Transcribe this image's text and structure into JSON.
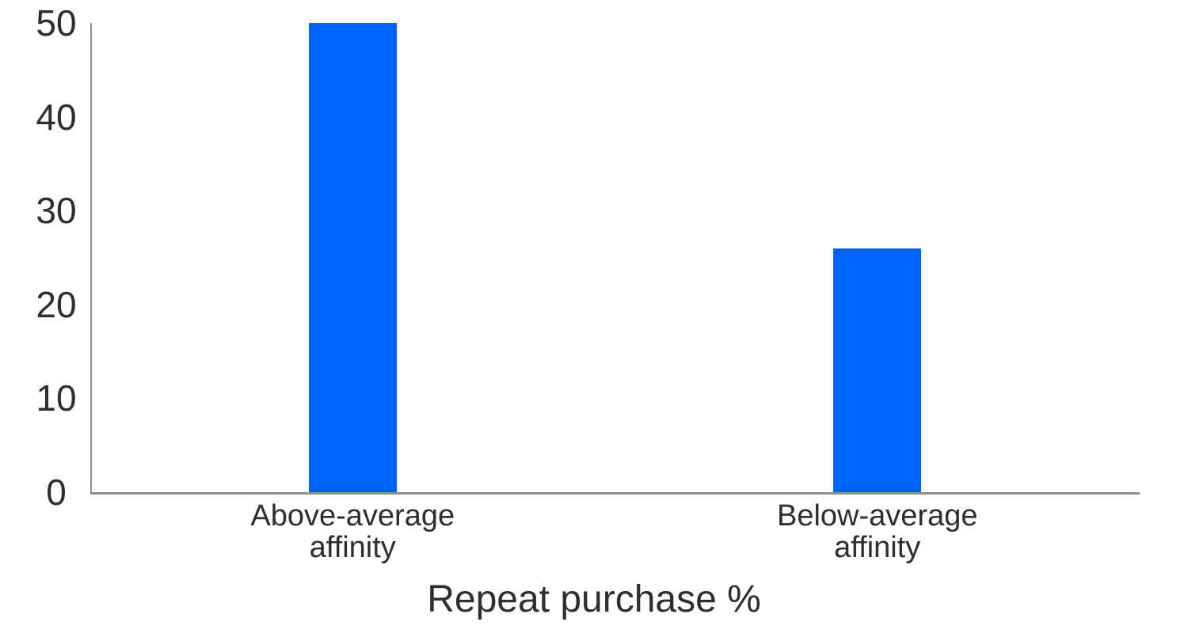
{
  "chart_data": {
    "type": "bar",
    "xlabel": "Repeat purchase %",
    "categories": [
      "Above-average\naffinity",
      "Below-average\naffinity"
    ],
    "values": [
      50,
      26
    ],
    "yticks": [
      0,
      10,
      20,
      30,
      40,
      50
    ],
    "ylim": [
      0,
      50
    ],
    "grid": false,
    "legend": false,
    "bar_color": "#0062ff",
    "axis_color": "#8e8e8e",
    "text_color": "#2e2e2e"
  }
}
